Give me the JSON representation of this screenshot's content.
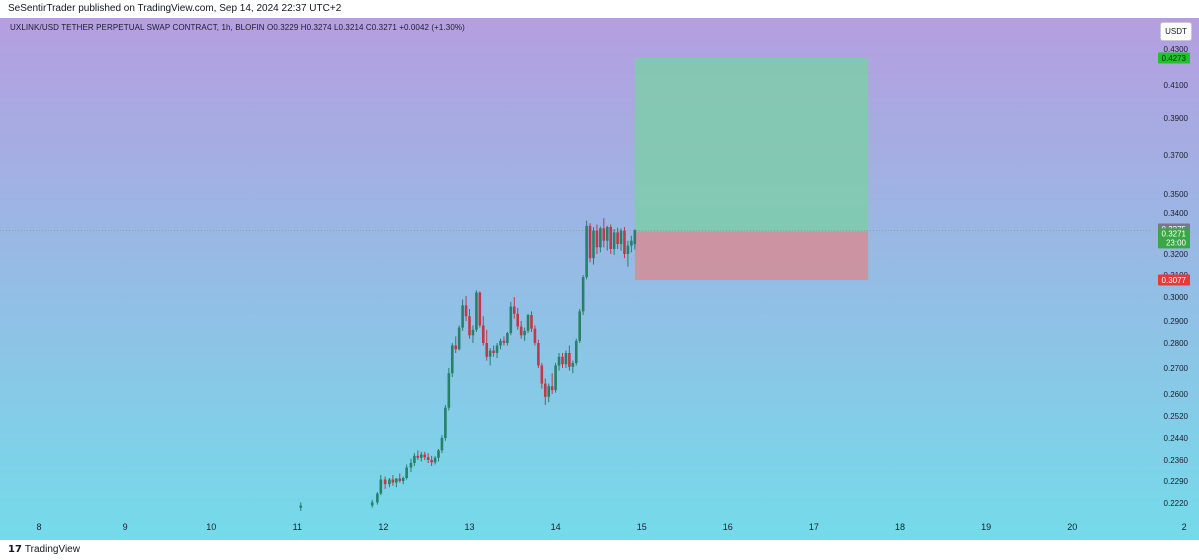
{
  "header": {
    "published": "SeSentirTrader published on TradingView.com, Sep 14, 2024 22:37 UTC+2"
  },
  "legend": {
    "text": "UXLINK/USD TETHER PERPETUAL SWAP CONTRACT, 1h, BLOFIN  O0.3229  H0.3274  L0.3214  C0.3271  +0.0042 (+1.30%)"
  },
  "currency_button": "USDT",
  "footer": {
    "logo_mark": "𝟭𝟳",
    "brand": "TradingView"
  },
  "colors": {
    "bg_top": "#b59ee0",
    "bg_bottom": "#74dbea",
    "candle_up": "#26806a",
    "candle_down": "#c0394a",
    "profit_zone": "#7ecdaa",
    "loss_zone": "#d58d98",
    "target_badge": "#22c22e",
    "stop_badge": "#e63a3a",
    "price_badge": "#777a86",
    "last_badge": "#3aa645"
  },
  "chart_data": {
    "type": "candlestick",
    "symbol": "UXLINK/USD TETHER PERPETUAL SWAP CONTRACT",
    "timeframe": "1h",
    "exchange": "BLOFIN",
    "ohlc": {
      "open": 0.3229,
      "high": 0.3274,
      "low": 0.3214,
      "close": 0.3271,
      "change": "+0.0042 (+1.30%)"
    },
    "x_ticks": [
      "8",
      "9",
      "10",
      "11",
      "12",
      "13",
      "14",
      "15",
      "16",
      "17",
      "18",
      "19",
      "20",
      "2"
    ],
    "y_ticks": [
      "0.4100",
      "0.3900",
      "0.3700",
      "0.3500",
      "0.3400",
      "0.3200",
      "0.3100",
      "0.3000",
      "0.2900",
      "0.2800",
      "0.2700",
      "0.2600",
      "0.2520",
      "0.2440",
      "0.2360",
      "0.2290",
      "0.2220"
    ],
    "price_labels": {
      "target": "0.4273",
      "current_mark": "0.3275",
      "last": "0.3271",
      "countdown": "23:00",
      "stop": "0.3077",
      "top_cut": "0.4300"
    },
    "position": {
      "side": "long",
      "entry": 0.3268,
      "target": 0.4273,
      "stop": 0.3077,
      "start_day": 14.92,
      "end_day": 17.63
    },
    "candles": [
      {
        "t": 10.42,
        "o": 0.2205,
        "h": 0.2222,
        "l": 0.2195,
        "c": 0.2212
      },
      {
        "t": 11.25,
        "o": 0.2212,
        "h": 0.223,
        "l": 0.2205,
        "c": 0.2222
      },
      {
        "t": 11.31,
        "o": 0.2222,
        "h": 0.2255,
        "l": 0.2215,
        "c": 0.225
      },
      {
        "t": 11.35,
        "o": 0.225,
        "h": 0.231,
        "l": 0.2245,
        "c": 0.2295
      },
      {
        "t": 11.4,
        "o": 0.2295,
        "h": 0.2305,
        "l": 0.2265,
        "c": 0.228
      },
      {
        "t": 11.45,
        "o": 0.228,
        "h": 0.23,
        "l": 0.227,
        "c": 0.2295
      },
      {
        "t": 11.49,
        "o": 0.2295,
        "h": 0.231,
        "l": 0.2275,
        "c": 0.2285
      },
      {
        "t": 11.53,
        "o": 0.2285,
        "h": 0.23,
        "l": 0.227,
        "c": 0.2298
      },
      {
        "t": 11.57,
        "o": 0.2298,
        "h": 0.2315,
        "l": 0.2285,
        "c": 0.229
      },
      {
        "t": 11.61,
        "o": 0.229,
        "h": 0.2305,
        "l": 0.228,
        "c": 0.23
      },
      {
        "t": 11.65,
        "o": 0.23,
        "h": 0.2345,
        "l": 0.2295,
        "c": 0.2335
      },
      {
        "t": 11.7,
        "o": 0.2335,
        "h": 0.2365,
        "l": 0.232,
        "c": 0.235
      },
      {
        "t": 11.74,
        "o": 0.235,
        "h": 0.2385,
        "l": 0.234,
        "c": 0.2375
      },
      {
        "t": 11.78,
        "o": 0.2375,
        "h": 0.2395,
        "l": 0.236,
        "c": 0.2368
      },
      {
        "t": 11.82,
        "o": 0.2368,
        "h": 0.239,
        "l": 0.2355,
        "c": 0.238
      },
      {
        "t": 11.86,
        "o": 0.238,
        "h": 0.239,
        "l": 0.236,
        "c": 0.237
      },
      {
        "t": 11.9,
        "o": 0.237,
        "h": 0.2385,
        "l": 0.235,
        "c": 0.236
      },
      {
        "t": 11.94,
        "o": 0.236,
        "h": 0.2375,
        "l": 0.234,
        "c": 0.2352
      },
      {
        "t": 11.98,
        "o": 0.2352,
        "h": 0.2375,
        "l": 0.2345,
        "c": 0.2368
      },
      {
        "t": 12.02,
        "o": 0.2368,
        "h": 0.24,
        "l": 0.2355,
        "c": 0.2395
      },
      {
        "t": 12.06,
        "o": 0.2395,
        "h": 0.245,
        "l": 0.2385,
        "c": 0.244
      },
      {
        "t": 12.1,
        "o": 0.244,
        "h": 0.256,
        "l": 0.243,
        "c": 0.255
      },
      {
        "t": 12.14,
        "o": 0.255,
        "h": 0.27,
        "l": 0.254,
        "c": 0.268
      },
      {
        "t": 12.18,
        "o": 0.268,
        "h": 0.28,
        "l": 0.2665,
        "c": 0.279
      },
      {
        "t": 12.22,
        "o": 0.279,
        "h": 0.283,
        "l": 0.276,
        "c": 0.2775
      },
      {
        "t": 12.26,
        "o": 0.2775,
        "h": 0.288,
        "l": 0.277,
        "c": 0.287
      },
      {
        "t": 12.3,
        "o": 0.287,
        "h": 0.299,
        "l": 0.2855,
        "c": 0.2965
      },
      {
        "t": 12.34,
        "o": 0.2965,
        "h": 0.3005,
        "l": 0.29,
        "c": 0.292
      },
      {
        "t": 12.38,
        "o": 0.292,
        "h": 0.295,
        "l": 0.282,
        "c": 0.2835
      },
      {
        "t": 12.42,
        "o": 0.2835,
        "h": 0.288,
        "l": 0.28,
        "c": 0.286
      },
      {
        "t": 12.46,
        "o": 0.286,
        "h": 0.303,
        "l": 0.285,
        "c": 0.302
      },
      {
        "t": 12.5,
        "o": 0.302,
        "h": 0.3025,
        "l": 0.287,
        "c": 0.288
      },
      {
        "t": 12.54,
        "o": 0.288,
        "h": 0.292,
        "l": 0.279,
        "c": 0.28
      },
      {
        "t": 12.58,
        "o": 0.28,
        "h": 0.286,
        "l": 0.273,
        "c": 0.2745
      },
      {
        "t": 12.62,
        "o": 0.2745,
        "h": 0.278,
        "l": 0.271,
        "c": 0.277
      },
      {
        "t": 12.66,
        "o": 0.277,
        "h": 0.279,
        "l": 0.2745,
        "c": 0.276
      },
      {
        "t": 12.7,
        "o": 0.276,
        "h": 0.28,
        "l": 0.274,
        "c": 0.279
      },
      {
        "t": 12.74,
        "o": 0.279,
        "h": 0.282,
        "l": 0.2775,
        "c": 0.281
      },
      {
        "t": 12.78,
        "o": 0.281,
        "h": 0.283,
        "l": 0.279,
        "c": 0.28
      },
      {
        "t": 12.82,
        "o": 0.28,
        "h": 0.285,
        "l": 0.279,
        "c": 0.2845
      },
      {
        "t": 12.86,
        "o": 0.2845,
        "h": 0.298,
        "l": 0.2835,
        "c": 0.296
      },
      {
        "t": 12.9,
        "o": 0.296,
        "h": 0.3,
        "l": 0.291,
        "c": 0.293
      },
      {
        "t": 12.94,
        "o": 0.293,
        "h": 0.2955,
        "l": 0.286,
        "c": 0.2875
      },
      {
        "t": 12.98,
        "o": 0.2875,
        "h": 0.29,
        "l": 0.282,
        "c": 0.2835
      },
      {
        "t": 13.02,
        "o": 0.2835,
        "h": 0.287,
        "l": 0.281,
        "c": 0.2855
      },
      {
        "t": 13.06,
        "o": 0.2855,
        "h": 0.293,
        "l": 0.2845,
        "c": 0.2925
      },
      {
        "t": 13.1,
        "o": 0.2925,
        "h": 0.294,
        "l": 0.285,
        "c": 0.2865
      },
      {
        "t": 13.14,
        "o": 0.2865,
        "h": 0.288,
        "l": 0.279,
        "c": 0.28
      },
      {
        "t": 13.18,
        "o": 0.28,
        "h": 0.2815,
        "l": 0.27,
        "c": 0.271
      },
      {
        "t": 13.22,
        "o": 0.271,
        "h": 0.272,
        "l": 0.262,
        "c": 0.264
      },
      {
        "t": 13.26,
        "o": 0.264,
        "h": 0.266,
        "l": 0.256,
        "c": 0.259
      },
      {
        "t": 13.3,
        "o": 0.259,
        "h": 0.264,
        "l": 0.257,
        "c": 0.263
      },
      {
        "t": 13.34,
        "o": 0.263,
        "h": 0.268,
        "l": 0.26,
        "c": 0.2615
      },
      {
        "t": 13.38,
        "o": 0.2615,
        "h": 0.272,
        "l": 0.2605,
        "c": 0.271
      },
      {
        "t": 13.42,
        "o": 0.271,
        "h": 0.276,
        "l": 0.269,
        "c": 0.2745
      },
      {
        "t": 13.46,
        "o": 0.2745,
        "h": 0.276,
        "l": 0.27,
        "c": 0.2715
      },
      {
        "t": 13.5,
        "o": 0.2715,
        "h": 0.277,
        "l": 0.27,
        "c": 0.276
      },
      {
        "t": 13.54,
        "o": 0.276,
        "h": 0.279,
        "l": 0.269,
        "c": 0.2705
      },
      {
        "t": 13.58,
        "o": 0.2705,
        "h": 0.273,
        "l": 0.268,
        "c": 0.272
      },
      {
        "t": 13.62,
        "o": 0.272,
        "h": 0.282,
        "l": 0.271,
        "c": 0.281
      },
      {
        "t": 13.66,
        "o": 0.281,
        "h": 0.295,
        "l": 0.28,
        "c": 0.294
      },
      {
        "t": 13.7,
        "o": 0.294,
        "h": 0.31,
        "l": 0.2925,
        "c": 0.309
      },
      {
        "t": 13.74,
        "o": 0.309,
        "h": 0.334,
        "l": 0.308,
        "c": 0.33
      },
      {
        "t": 13.78,
        "o": 0.33,
        "h": 0.332,
        "l": 0.316,
        "c": 0.318
      },
      {
        "t": 13.82,
        "o": 0.318,
        "h": 0.329,
        "l": 0.315,
        "c": 0.327
      },
      {
        "t": 13.86,
        "o": 0.327,
        "h": 0.331,
        "l": 0.32,
        "c": 0.322
      },
      {
        "t": 13.9,
        "o": 0.322,
        "h": 0.3295,
        "l": 0.3205,
        "c": 0.328
      },
      {
        "t": 13.94,
        "o": 0.328,
        "h": 0.336,
        "l": 0.322,
        "c": 0.324
      },
      {
        "t": 13.98,
        "o": 0.324,
        "h": 0.33,
        "l": 0.321,
        "c": 0.329
      },
      {
        "t": 14.02,
        "o": 0.329,
        "h": 0.331,
        "l": 0.32,
        "c": 0.3215
      },
      {
        "t": 14.06,
        "o": 0.3215,
        "h": 0.3275,
        "l": 0.3195,
        "c": 0.3265
      },
      {
        "t": 14.1,
        "o": 0.3265,
        "h": 0.3285,
        "l": 0.3215,
        "c": 0.323
      },
      {
        "t": 14.14,
        "o": 0.323,
        "h": 0.328,
        "l": 0.321,
        "c": 0.327
      },
      {
        "t": 14.18,
        "o": 0.327,
        "h": 0.329,
        "l": 0.318,
        "c": 0.32
      },
      {
        "t": 14.22,
        "o": 0.32,
        "h": 0.324,
        "l": 0.314,
        "c": 0.3225
      },
      {
        "t": 14.26,
        "o": 0.3225,
        "h": 0.3255,
        "l": 0.3205,
        "c": 0.324
      },
      {
        "t": 14.3,
        "o": 0.3229,
        "h": 0.3274,
        "l": 0.3214,
        "c": 0.3271
      }
    ]
  }
}
